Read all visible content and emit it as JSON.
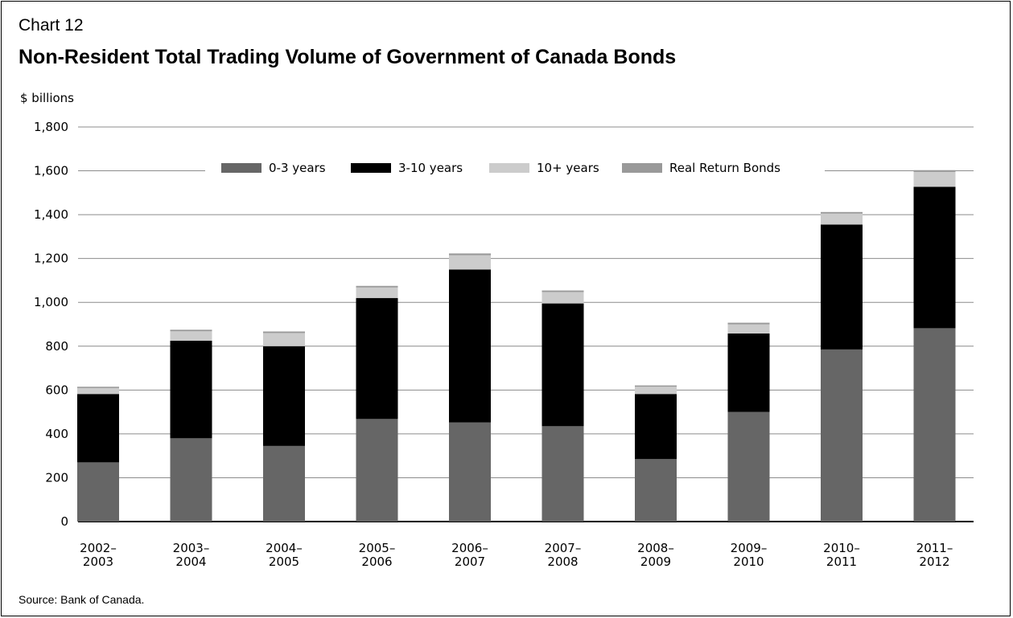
{
  "header": {
    "chart_number": "Chart 12",
    "title": "Non-Resident Total Trading Volume of Government of Canada Bonds"
  },
  "footer": {
    "source": "Source: Bank of Canada."
  },
  "colors": {
    "0-3 years": "#666666",
    "3-10 years": "#000000",
    "10+ years": "#cccccc",
    "Real Return Bonds": "#999999",
    "grid": "#8c8c8c"
  },
  "chart_data": {
    "type": "bar",
    "stacked": true,
    "title": "Non-Resident Total Trading Volume of Government of Canada Bonds",
    "ylabel": "$ billions",
    "xlabel": "",
    "ylim": [
      0,
      1800
    ],
    "yticks": [
      0,
      200,
      400,
      600,
      800,
      1000,
      1200,
      1400,
      1600,
      1800
    ],
    "ytick_labels": [
      "0",
      "200",
      "400",
      "600",
      "800",
      "1,000",
      "1,200",
      "1,400",
      "1,600",
      "1,800"
    ],
    "grid": true,
    "legend_position": "top-center",
    "categories": [
      [
        "2002–",
        "2003"
      ],
      [
        "2003–",
        "2004"
      ],
      [
        "2004–",
        "2005"
      ],
      [
        "2005–",
        "2006"
      ],
      [
        "2006–",
        "2007"
      ],
      [
        "2007–",
        "2008"
      ],
      [
        "2008–",
        "2009"
      ],
      [
        "2009–",
        "2010"
      ],
      [
        "2010–",
        "2011"
      ],
      [
        "2011–",
        "2012"
      ]
    ],
    "series": [
      {
        "name": "0-3 years",
        "values": [
          270,
          380,
          345,
          468,
          452,
          435,
          285,
          500,
          785,
          882
        ]
      },
      {
        "name": "3-10 years",
        "values": [
          312,
          445,
          455,
          552,
          698,
          560,
          297,
          358,
          570,
          645
        ]
      },
      {
        "name": "10+ years",
        "values": [
          27,
          43,
          60,
          48,
          65,
          52,
          33,
          42,
          50,
          68
        ]
      },
      {
        "name": "Real Return Bonds",
        "values": [
          6,
          7,
          7,
          7,
          8,
          7,
          6,
          7,
          7,
          8
        ]
      }
    ]
  }
}
